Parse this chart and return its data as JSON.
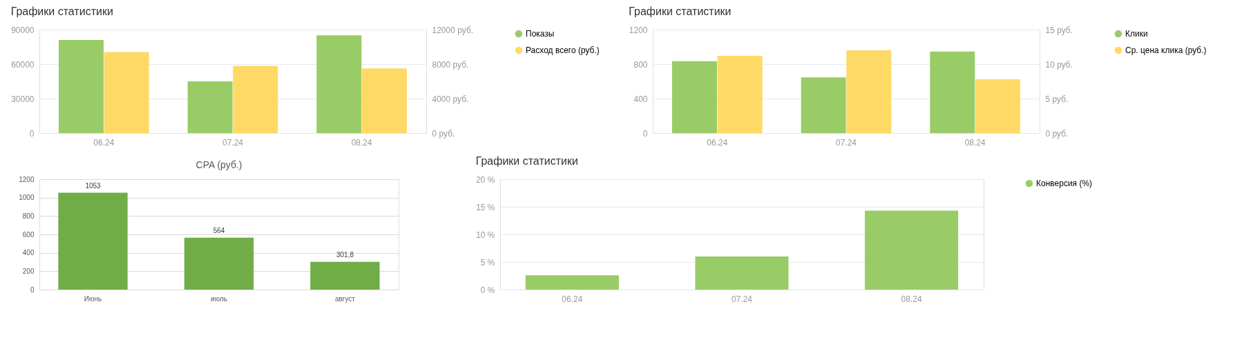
{
  "chart_data": [
    {
      "type": "bar",
      "title": "Графики статистики",
      "categories": [
        "06.24",
        "07.24",
        "08.24"
      ],
      "series": [
        {
          "name": "Показы",
          "color": "#99cc66",
          "values": [
            81000,
            45000,
            85000
          ]
        },
        {
          "name": "Расход всего (руб.)",
          "color": "#ffd966",
          "values": [
            9400,
            7800,
            7500
          ],
          "axis": "y2"
        }
      ],
      "ylim": [
        0,
        90000
      ],
      "yticks": [
        0,
        30000,
        60000,
        90000
      ],
      "y2lim": [
        0,
        12000
      ],
      "y2ticks": [
        {
          "value": 0,
          "label": "0 руб."
        },
        {
          "value": 4000,
          "label": "4000 руб."
        },
        {
          "value": 8000,
          "label": "8000 руб."
        },
        {
          "value": 12000,
          "label": "12000 руб."
        }
      ],
      "grid": "y",
      "legend": "top right"
    },
    {
      "type": "bar",
      "title": "Графики статистики",
      "categories": [
        "06.24",
        "07.24",
        "08.24"
      ],
      "series": [
        {
          "name": "Клики",
          "color": "#99cc66",
          "values": [
            835,
            647,
            946
          ]
        },
        {
          "name": "Ср. цена клика (руб.)",
          "color": "#ffd966",
          "values": [
            11.2,
            12.0,
            7.8
          ],
          "axis": "y2"
        }
      ],
      "ylim": [
        0,
        1200
      ],
      "yticks": [
        0,
        400,
        800,
        1200
      ],
      "y2lim": [
        0,
        15
      ],
      "y2ticks": [
        {
          "value": 0,
          "label": "0 руб."
        },
        {
          "value": 5,
          "label": "5 руб."
        },
        {
          "value": 10,
          "label": "10 руб."
        },
        {
          "value": 15,
          "label": "15 руб."
        }
      ],
      "grid": "y",
      "legend": "top right"
    },
    {
      "type": "bar",
      "title": "CPA (руб.)",
      "categories": [
        "Июнь",
        "июль",
        "август"
      ],
      "values": [
        1053,
        564,
        301.8
      ],
      "color": "#70ad47",
      "value_labels": [
        "1053",
        "564",
        "301,8"
      ],
      "ylim": [
        0,
        1200
      ],
      "yticks": [
        0,
        200,
        400,
        600,
        800,
        1000,
        1200
      ],
      "grid": "y"
    },
    {
      "type": "bar",
      "title": "Графики статистики",
      "categories": [
        "06.24",
        "07.24",
        "08.24"
      ],
      "series": [
        {
          "name": "Конверсия (%)",
          "color": "#99cc66",
          "values": [
            2.6,
            6.0,
            14.3
          ]
        }
      ],
      "ylim": [
        0,
        20
      ],
      "yticks": [
        {
          "value": 0,
          "label": "0 %"
        },
        {
          "value": 5,
          "label": "5 %"
        },
        {
          "value": 10,
          "label": "10 %"
        },
        {
          "value": 15,
          "label": "15 %"
        },
        {
          "value": 20,
          "label": "20 %"
        }
      ],
      "grid": "y",
      "legend": "top right"
    }
  ]
}
